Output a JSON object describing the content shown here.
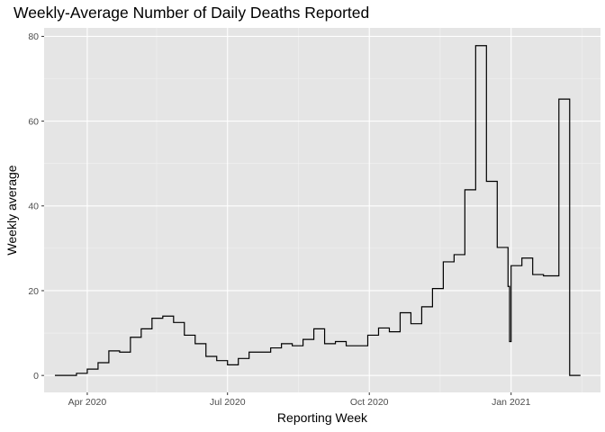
{
  "chart_data": {
    "type": "line",
    "line_shape": "step",
    "title": "Weekly-Average Number of Daily Deaths Reported",
    "xlabel": "Reporting Week",
    "ylabel": "Weekly average",
    "xlim": [
      "2020-03-04",
      "2021-02-28"
    ],
    "ylim": [
      -4,
      82
    ],
    "x_ticks": [
      {
        "date": "2020-04-01",
        "label": "Apr 2020"
      },
      {
        "date": "2020-07-01",
        "label": "Jul 2020"
      },
      {
        "date": "2020-10-01",
        "label": "Oct 2020"
      },
      {
        "date": "2021-01-01",
        "label": "Jan 2021"
      }
    ],
    "x_minor_ticks": [
      "2020-05-16",
      "2020-08-16",
      "2020-11-16",
      "2021-02-16"
    ],
    "y_ticks": [
      0,
      20,
      40,
      60,
      80
    ],
    "background": "#e5e5e5",
    "grid": true,
    "line_color": "#000000",
    "series": [
      {
        "x": [
          "2020-03-11",
          "2020-03-18",
          "2020-03-25",
          "2020-04-01",
          "2020-04-08",
          "2020-04-15",
          "2020-04-22",
          "2020-04-29",
          "2020-05-06",
          "2020-05-13",
          "2020-05-20",
          "2020-05-27",
          "2020-06-03",
          "2020-06-10",
          "2020-06-17",
          "2020-06-24",
          "2020-07-01",
          "2020-07-08",
          "2020-07-15",
          "2020-07-22",
          "2020-07-29",
          "2020-08-05",
          "2020-08-12",
          "2020-08-19",
          "2020-08-26",
          "2020-09-02",
          "2020-09-09",
          "2020-09-16",
          "2020-09-23",
          "2020-09-30",
          "2020-10-07",
          "2020-10-14",
          "2020-10-21",
          "2020-10-28",
          "2020-11-04",
          "2020-11-11",
          "2020-11-18",
          "2020-11-25",
          "2020-12-02",
          "2020-12-09",
          "2020-12-16",
          "2020-12-23",
          "2020-12-30",
          "2020-12-31",
          "2021-01-01",
          "2021-01-08",
          "2021-01-15",
          "2021-01-22",
          "2021-02-01",
          "2021-02-08",
          "2021-02-15"
        ],
        "y": [
          0,
          0,
          0.5,
          1.5,
          3,
          5.8,
          5.5,
          9,
          11,
          13.5,
          14,
          12.5,
          9.5,
          7.5,
          4.5,
          3.5,
          2.5,
          4,
          5.5,
          5.5,
          6.5,
          7.5,
          7,
          8.5,
          11,
          7.5,
          8,
          7,
          7,
          9.5,
          11.2,
          10.3,
          14.8,
          12.2,
          16.2,
          20.5,
          26.8,
          28.5,
          43.8,
          77.8,
          45.8,
          30.2,
          21,
          8,
          25.9,
          27.7,
          23.8,
          23.5,
          65.2,
          0,
          0
        ]
      }
    ]
  }
}
